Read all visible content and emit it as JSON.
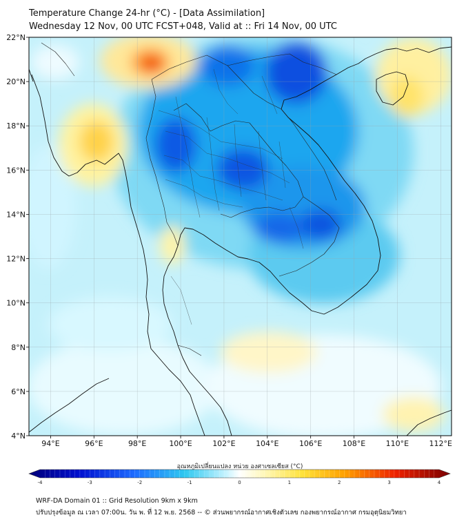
{
  "title": {
    "line1": "Temperature Change 24-hr (°C) - [Data Assimilation]",
    "line2": "Wednesday 12 Nov, 00 UTC FCST+048, Valid at :: Fri 14 Nov, 00 UTC"
  },
  "map": {
    "lat_range": [
      4,
      22
    ],
    "lon_range": [
      93,
      112.5
    ],
    "lat_ticks": [
      "4°N",
      "6°N",
      "8°N",
      "10°N",
      "12°N",
      "14°N",
      "16°N",
      "18°N",
      "20°N",
      "22°N"
    ],
    "lon_ticks": [
      "94°E",
      "96°E",
      "98°E",
      "100°E",
      "102°E",
      "104°E",
      "106°E",
      "108°E",
      "110°E",
      "112°E"
    ],
    "lat_values": [
      4,
      6,
      8,
      10,
      12,
      14,
      16,
      18,
      20,
      22
    ],
    "lon_values": [
      94,
      96,
      98,
      100,
      102,
      104,
      106,
      108,
      110,
      112
    ]
  },
  "colorbar": {
    "label": "อุณหภูมิเปลี่ยนแปลง หน่วย องศาเซลเซียส (°C)",
    "ticks": [
      "-4",
      "-3",
      "-2",
      "-1",
      "0",
      "1",
      "2",
      "3",
      "4"
    ],
    "tick_values": [
      -4,
      -3,
      -2,
      -1,
      0,
      1,
      2,
      3,
      4
    ],
    "min": -4,
    "max": 4
  },
  "footer": {
    "line1": "WRF-DA Domain 01 :: Grid Resolution 9km x 9km",
    "line2": "ปรับปรุงข้อมูล ณ เวลา 07:00น. วัน พ. ที่ 12 พ.ย. 2568 -- © ส่วนพยากรณ์อากาศเชิงตัวเลข กองพยากรณ์อากาศ กรมอุตุนิยมวิทยา"
  },
  "anomalies": [
    {
      "name": "warm-core-north-myanmar",
      "lon": 98.5,
      "lat": 21.0,
      "value": 2.2
    },
    {
      "name": "warm-core-central-myanmar",
      "lon": 96.3,
      "lat": 17.3,
      "value": 1.7
    },
    {
      "name": "warm-south-china-coast",
      "lon": 111.0,
      "lat": 20.5,
      "value": 1.2
    },
    {
      "name": "cold-core-northern-thailand",
      "lon": 99.8,
      "lat": 17.0,
      "value": -2.6
    },
    {
      "name": "cold-core-northeast-thailand",
      "lon": 103.0,
      "lat": 16.0,
      "value": -2.5
    },
    {
      "name": "cold-core-north-vietnam",
      "lon": 105.5,
      "lat": 20.5,
      "value": -2.8
    },
    {
      "name": "cold-core-cambodia",
      "lon": 106.5,
      "lat": 13.5,
      "value": -2.4
    }
  ]
}
